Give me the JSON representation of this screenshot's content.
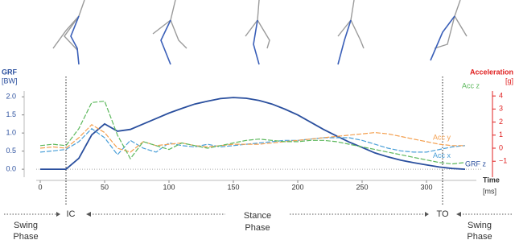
{
  "chart_data": {
    "type": "line",
    "x": [
      0,
      10,
      20,
      30,
      40,
      50,
      60,
      70,
      80,
      90,
      100,
      110,
      120,
      130,
      140,
      150,
      160,
      170,
      180,
      190,
      200,
      210,
      220,
      230,
      240,
      250,
      260,
      270,
      280,
      290,
      300,
      310,
      320,
      330
    ],
    "series": [
      {
        "name": "GRF z",
        "color": "#2a4f9e",
        "axis": "y",
        "values": [
          0,
          0,
          0,
          0.3,
          0.95,
          1.25,
          1.05,
          1.1,
          1.25,
          1.4,
          1.55,
          1.68,
          1.8,
          1.88,
          1.95,
          1.98,
          1.96,
          1.9,
          1.8,
          1.66,
          1.5,
          1.3,
          1.1,
          0.92,
          0.75,
          0.6,
          0.45,
          0.34,
          0.25,
          0.18,
          0.12,
          0.06,
          0.02,
          0
        ]
      },
      {
        "name": "Acc x",
        "color": "#4a9fd8",
        "axis": "y2",
        "values": [
          -0.3,
          -0.2,
          -0.1,
          0.5,
          1.5,
          0.8,
          -0.5,
          0.6,
          0,
          -0.3,
          0.4,
          0.2,
          0.1,
          0.3,
          0.1,
          0.2,
          0.3,
          0.4,
          0.5,
          0.6,
          0.6,
          0.7,
          0.8,
          0.8,
          0.8,
          0.6,
          0.3,
          0,
          -0.2,
          -0.3,
          -0.3,
          -0.1,
          0.1,
          0.2
        ]
      },
      {
        "name": "Acc y",
        "color": "#f4a050",
        "axis": "y2",
        "values": [
          0,
          0.1,
          0,
          0.8,
          1.8,
          1.2,
          0,
          -0.3,
          0.5,
          0.2,
          0.3,
          0.4,
          0.2,
          0.1,
          0.2,
          0.3,
          0.3,
          0.3,
          0.4,
          0.5,
          0.6,
          0.7,
          0.8,
          0.9,
          1.0,
          1.1,
          1.2,
          1.1,
          0.9,
          0.7,
          0.5,
          0.3,
          0.2,
          0.2
        ]
      },
      {
        "name": "Acc z",
        "color": "#5cb85c",
        "axis": "y2",
        "values": [
          0.2,
          0.3,
          0.2,
          1.5,
          3.5,
          3.6,
          1,
          -0.8,
          0.5,
          0.2,
          -0.1,
          0.4,
          0.2,
          0,
          0.2,
          0.4,
          0.6,
          0.7,
          0.6,
          0.5,
          0.5,
          0.6,
          0.6,
          0.5,
          0.3,
          0.1,
          -0.1,
          -0.3,
          -0.5,
          -0.7,
          -0.9,
          -1.1,
          -1.2,
          -1.1
        ]
      }
    ],
    "xlim": [
      0,
      335
    ],
    "xticks": [
      0,
      50,
      100,
      150,
      200,
      250,
      300
    ],
    "ylim": [
      -0.22,
      2.16
    ],
    "yticks": [
      {
        "value": 0,
        "label": "0.0"
      },
      0.5,
      {
        "value": 1,
        "label": "1.0"
      },
      1.5,
      {
        "value": 2,
        "label": "2.0"
      }
    ],
    "y2lim": [
      -2.22,
      4.38
    ],
    "y2ticks": [
      {
        "value": -1,
        "label": "−1"
      },
      0,
      1,
      2,
      3,
      4
    ],
    "ylabel": [
      "GRF",
      "[BW]"
    ],
    "y2label": [
      "Acceleration",
      "[g]"
    ],
    "xlabel": [
      "Time",
      "[ms]"
    ],
    "annotations": [
      "IC",
      "TO",
      "Swing",
      "Phase",
      "Stance",
      "Phase",
      "Swing",
      "Phase"
    ]
  }
}
